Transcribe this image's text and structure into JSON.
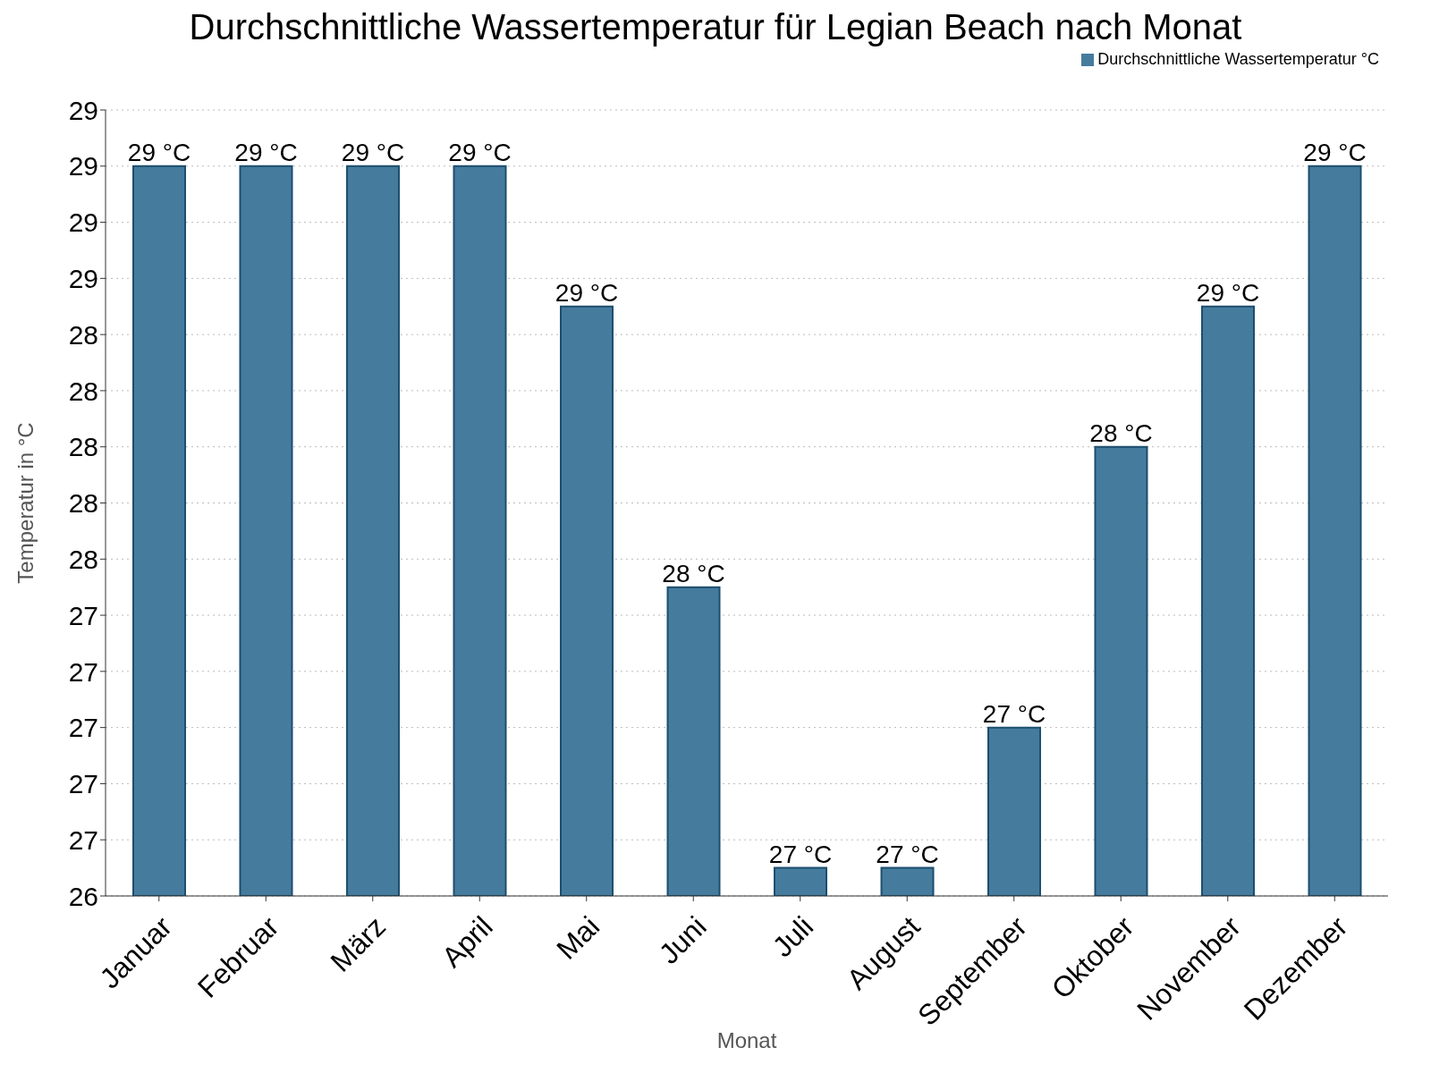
{
  "chart_data": {
    "type": "bar",
    "title": "Durchschnittliche Wassertemperatur für Legian Beach nach Monat",
    "xlabel": "Monat",
    "ylabel": "Temperatur in °C",
    "categories": [
      "Januar",
      "Februar",
      "März",
      "April",
      "Mai",
      "Juni",
      "Juli",
      "August",
      "September",
      "Oktober",
      "November",
      "Dezember"
    ],
    "series": [
      {
        "name": "Durchschnittliche Wassertemperatur °C",
        "color": "#457b9d",
        "values": [
          29.0,
          29.0,
          29.0,
          29.0,
          28.5,
          27.5,
          26.5,
          26.5,
          27.0,
          28.0,
          28.5,
          29.0
        ],
        "value_labels": [
          "29 °C",
          "29 °C",
          "29 °C",
          "29 °C",
          "29 °C",
          "28 °C",
          "27 °C",
          "27 °C",
          "27 °C",
          "28 °C",
          "29 °C",
          "29 °C"
        ]
      }
    ],
    "ylim": [
      26.4,
      29.2
    ],
    "yticks": [
      {
        "value": 26.4,
        "label": "26"
      },
      {
        "value": 26.6,
        "label": "27"
      },
      {
        "value": 26.8,
        "label": "27"
      },
      {
        "value": 27.0,
        "label": "27"
      },
      {
        "value": 27.2,
        "label": "27"
      },
      {
        "value": 27.4,
        "label": "27"
      },
      {
        "value": 27.6,
        "label": "28"
      },
      {
        "value": 27.8,
        "label": "28"
      },
      {
        "value": 28.0,
        "label": "28"
      },
      {
        "value": 28.2,
        "label": "28"
      },
      {
        "value": 28.4,
        "label": "28"
      },
      {
        "value": 28.6,
        "label": "29"
      },
      {
        "value": 28.8,
        "label": "29"
      },
      {
        "value": 29.0,
        "label": "29"
      },
      {
        "value": 29.2,
        "label": "29"
      }
    ],
    "grid": "y",
    "legend": "top right"
  }
}
